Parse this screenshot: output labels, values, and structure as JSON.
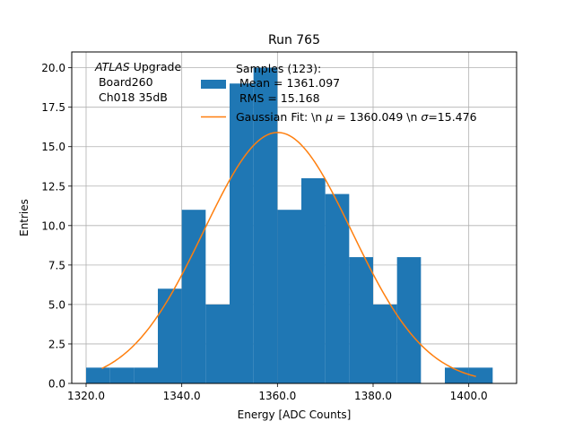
{
  "chart_data": {
    "type": "bar",
    "title": "Run 765",
    "xlabel": "Energy [ADC Counts]",
    "ylabel": "Entries",
    "xlim": [
      1317,
      1410
    ],
    "ylim": [
      0,
      21
    ],
    "xticks": [
      1320,
      1340,
      1360,
      1380,
      1400
    ],
    "xtick_labels": [
      "1320.0",
      "1340.0",
      "1360.0",
      "1380.0",
      "1400.0"
    ],
    "yticks": [
      0,
      2.5,
      5,
      7.5,
      10,
      12.5,
      15,
      17.5,
      20
    ],
    "ytick_labels": [
      "0.0",
      "2.5",
      "5.0",
      "7.5",
      "10.0",
      "12.5",
      "15.0",
      "17.5",
      "20.0"
    ],
    "grid": true,
    "bin_edges": [
      1320,
      1325,
      1330,
      1335,
      1340,
      1345,
      1350,
      1355,
      1360,
      1365,
      1370,
      1375,
      1380,
      1385,
      1390,
      1395,
      1400,
      1405
    ],
    "values": [
      1,
      1,
      1,
      6,
      11,
      5,
      19,
      20,
      11,
      13,
      12,
      8,
      5,
      8,
      0,
      1,
      1
    ],
    "bar_color": "#1f77b4",
    "fit": {
      "type": "gaussian",
      "mu": 1360.049,
      "sigma": 15.476,
      "amplitude": 15.9,
      "x_range": [
        1323.3,
        1401.5
      ],
      "color": "#ff7f0e"
    },
    "annotation": {
      "italic": "ATLAS",
      "lines": [
        " Upgrade",
        " Board260",
        " Ch018 35dB"
      ]
    },
    "legend": {
      "location": "top-center",
      "entries": [
        {
          "marker": "bar",
          "lines": [
            "Samples (123):",
            " Mean = 1361.097",
            " RMS = 15.168"
          ]
        },
        {
          "marker": "line",
          "label_prefix": "Gaussian Fit: \\n ",
          "mu_symbol": "μ",
          "mu_text": " = 1360.049 \\n ",
          "sigma_symbol": "σ",
          "sigma_text": "=15.476"
        }
      ]
    }
  }
}
